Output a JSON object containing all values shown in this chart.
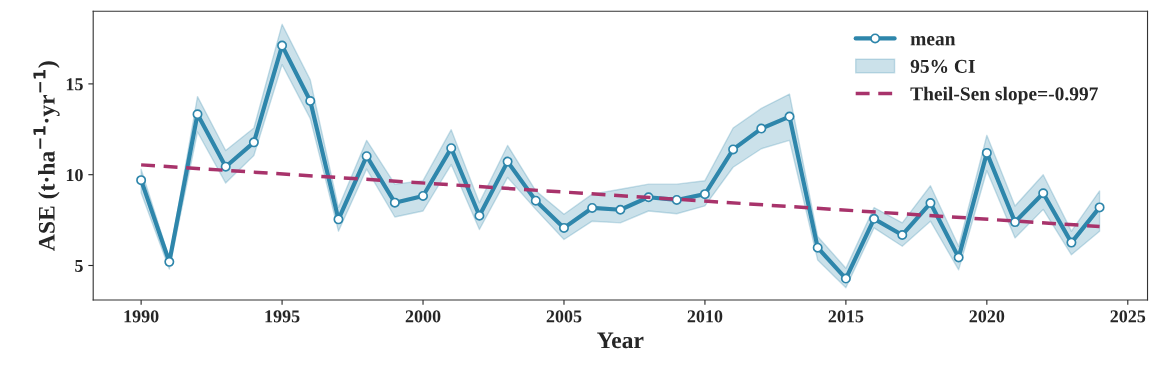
{
  "chart_data": {
    "type": "line",
    "xlabel": "Year",
    "ylabel": "ASE (t·ha$^{−1}$·yr$^{−1}$)",
    "x": [
      1990,
      1991,
      1992,
      1993,
      1994,
      1995,
      1996,
      1997,
      1998,
      1999,
      2000,
      2001,
      2002,
      2003,
      2004,
      2005,
      2006,
      2007,
      2008,
      2009,
      2010,
      2011,
      2012,
      2013,
      2014,
      2015,
      2016,
      2017,
      2018,
      2019,
      2020,
      2021,
      2022,
      2023,
      2024
    ],
    "xlim": [
      1988.3,
      2025.7
    ],
    "xticks": [
      1990,
      1995,
      2000,
      2005,
      2010,
      2015,
      2020,
      2025
    ],
    "ylim": [
      3.1,
      19.0
    ],
    "yticks": [
      5,
      10,
      15
    ],
    "grid": false,
    "legend": "top right",
    "annotations": [
      "95% CI"
    ],
    "series": [
      {
        "name": "mean",
        "color": "#2e86ab",
        "marker": "circle",
        "line_style": "solid",
        "values": [
          9.7,
          5.2,
          13.33,
          10.44,
          11.78,
          17.11,
          14.06,
          7.54,
          11.02,
          8.46,
          8.83,
          11.46,
          7.74,
          10.72,
          8.57,
          7.07,
          8.17,
          8.07,
          8.76,
          8.61,
          8.93,
          11.39,
          12.54,
          13.2,
          5.98,
          4.28,
          7.57,
          6.68,
          8.44,
          5.44,
          11.2,
          7.39,
          8.98,
          6.26,
          8.2
        ],
        "lower": [
          9.0,
          4.8,
          12.35,
          9.54,
          11.06,
          16.06,
          13.09,
          6.89,
          10.31,
          7.67,
          8.0,
          10.56,
          6.98,
          9.85,
          8.09,
          6.43,
          7.44,
          7.35,
          8.0,
          7.85,
          8.28,
          10.41,
          11.43,
          11.89,
          5.3,
          3.78,
          7.07,
          6.06,
          7.44,
          4.76,
          10.22,
          6.52,
          8.09,
          5.59,
          6.89
        ],
        "upper": [
          10.3,
          5.4,
          14.3,
          11.33,
          12.57,
          18.28,
          15.22,
          8.19,
          11.89,
          9.48,
          9.67,
          12.48,
          8.46,
          11.61,
          9.11,
          7.82,
          8.93,
          9.2,
          9.48,
          9.48,
          9.67,
          12.57,
          13.65,
          14.44,
          6.6,
          4.85,
          8.19,
          7.35,
          9.39,
          6.06,
          12.17,
          8.28,
          10.0,
          6.89,
          9.11
        ]
      },
      {
        "name": "Theil-Sen slope=-0.997",
        "color": "#a8336b",
        "marker": "none",
        "line_style": "dashed",
        "x": [
          1990,
          2024
        ],
        "values": [
          10.54,
          7.15
        ]
      }
    ]
  }
}
